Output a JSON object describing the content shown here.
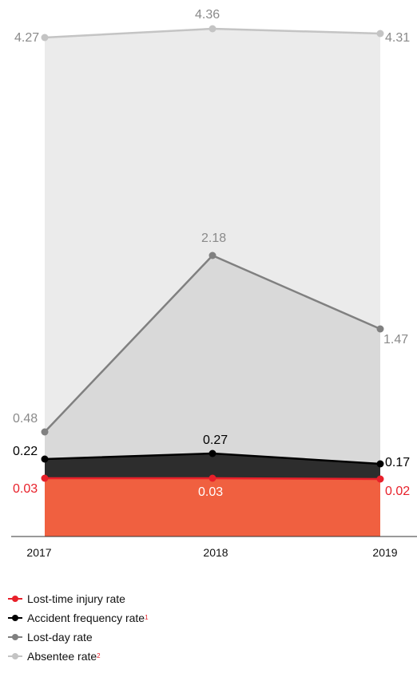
{
  "chart_data": {
    "type": "area",
    "categories": [
      "2017",
      "2018",
      "2019"
    ],
    "series": [
      {
        "name": "Absentee rate",
        "superscript": "2",
        "values": [
          4.27,
          4.36,
          4.31
        ],
        "color": "#c4c4c4",
        "fill": "#ebebeb",
        "labels": [
          "4.27",
          "4.36",
          "4.31"
        ]
      },
      {
        "name": "Lost-day rate",
        "superscript": "",
        "values": [
          0.48,
          2.18,
          1.47
        ],
        "color": "#808080",
        "fill": "#d9d9d9",
        "labels": [
          "0.48",
          "2.18",
          "1.47"
        ]
      },
      {
        "name": "Accident frequency rate",
        "superscript": "1",
        "values": [
          0.22,
          0.27,
          0.17
        ],
        "color": "#000000",
        "fill": "#2d2d2d",
        "labels": [
          "0.22",
          "0.27",
          "0.17"
        ]
      },
      {
        "name": "Lost-time injury rate",
        "superscript": "",
        "values": [
          0.03,
          0.03,
          0.02
        ],
        "color": "#e8202a",
        "fill": "#f06040",
        "labels": [
          "0.03",
          "0.03",
          "0.02"
        ]
      }
    ],
    "legend_order": [
      {
        "name": "Lost-time injury rate",
        "superscript": "",
        "color": "#e8202a"
      },
      {
        "name": "Accident frequency rate",
        "superscript": "1",
        "color": "#000000"
      },
      {
        "name": "Lost-day rate",
        "superscript": "",
        "color": "#808080"
      },
      {
        "name": "Absentee rate",
        "superscript": "2",
        "color": "#c4c4c4"
      }
    ],
    "title": "",
    "xlabel": "",
    "ylabel": "",
    "grid": false,
    "legend_position": "bottom"
  }
}
